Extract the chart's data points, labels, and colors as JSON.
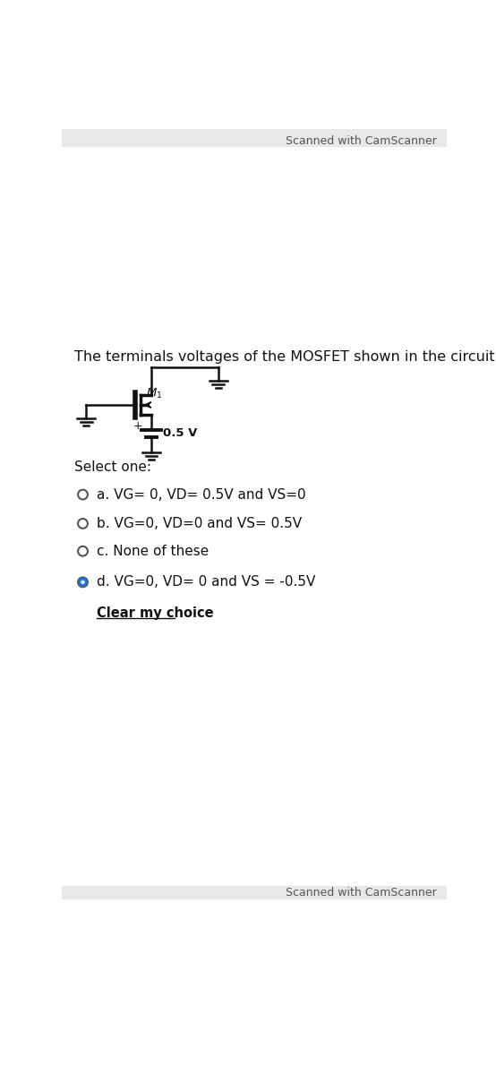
{
  "bg_color": "#ffffff",
  "header_bar_color": "#e8e8e8",
  "footer_bar_color": "#e8e8e8",
  "camscanner_text": "Scanned with CamScanner",
  "camscanner_fontsize": 9,
  "camscanner_color": "#555555",
  "question_text": "The terminals voltages of the MOSFET shown in the circuit below are:",
  "question_fontsize": 11.5,
  "select_one_text": "Select one:",
  "select_one_fontsize": 11,
  "options": [
    {
      "label": "a.",
      "text": " VG= 0, VD= 0.5V and VS=0",
      "selected": false
    },
    {
      "label": "b.",
      "text": " VG=0, VD=0 and VS= 0.5V",
      "selected": false
    },
    {
      "label": "c.",
      "text": " None of these",
      "selected": false
    },
    {
      "label": "d.",
      "text": " VG=0, VD= 0 and VS = -0.5V",
      "selected": true
    }
  ],
  "clear_choice_text": "Clear my choice",
  "option_fontsize": 11,
  "radio_color_empty": "#ffffff",
  "radio_color_filled": "#1a73e8",
  "radio_border_color": "#555555"
}
